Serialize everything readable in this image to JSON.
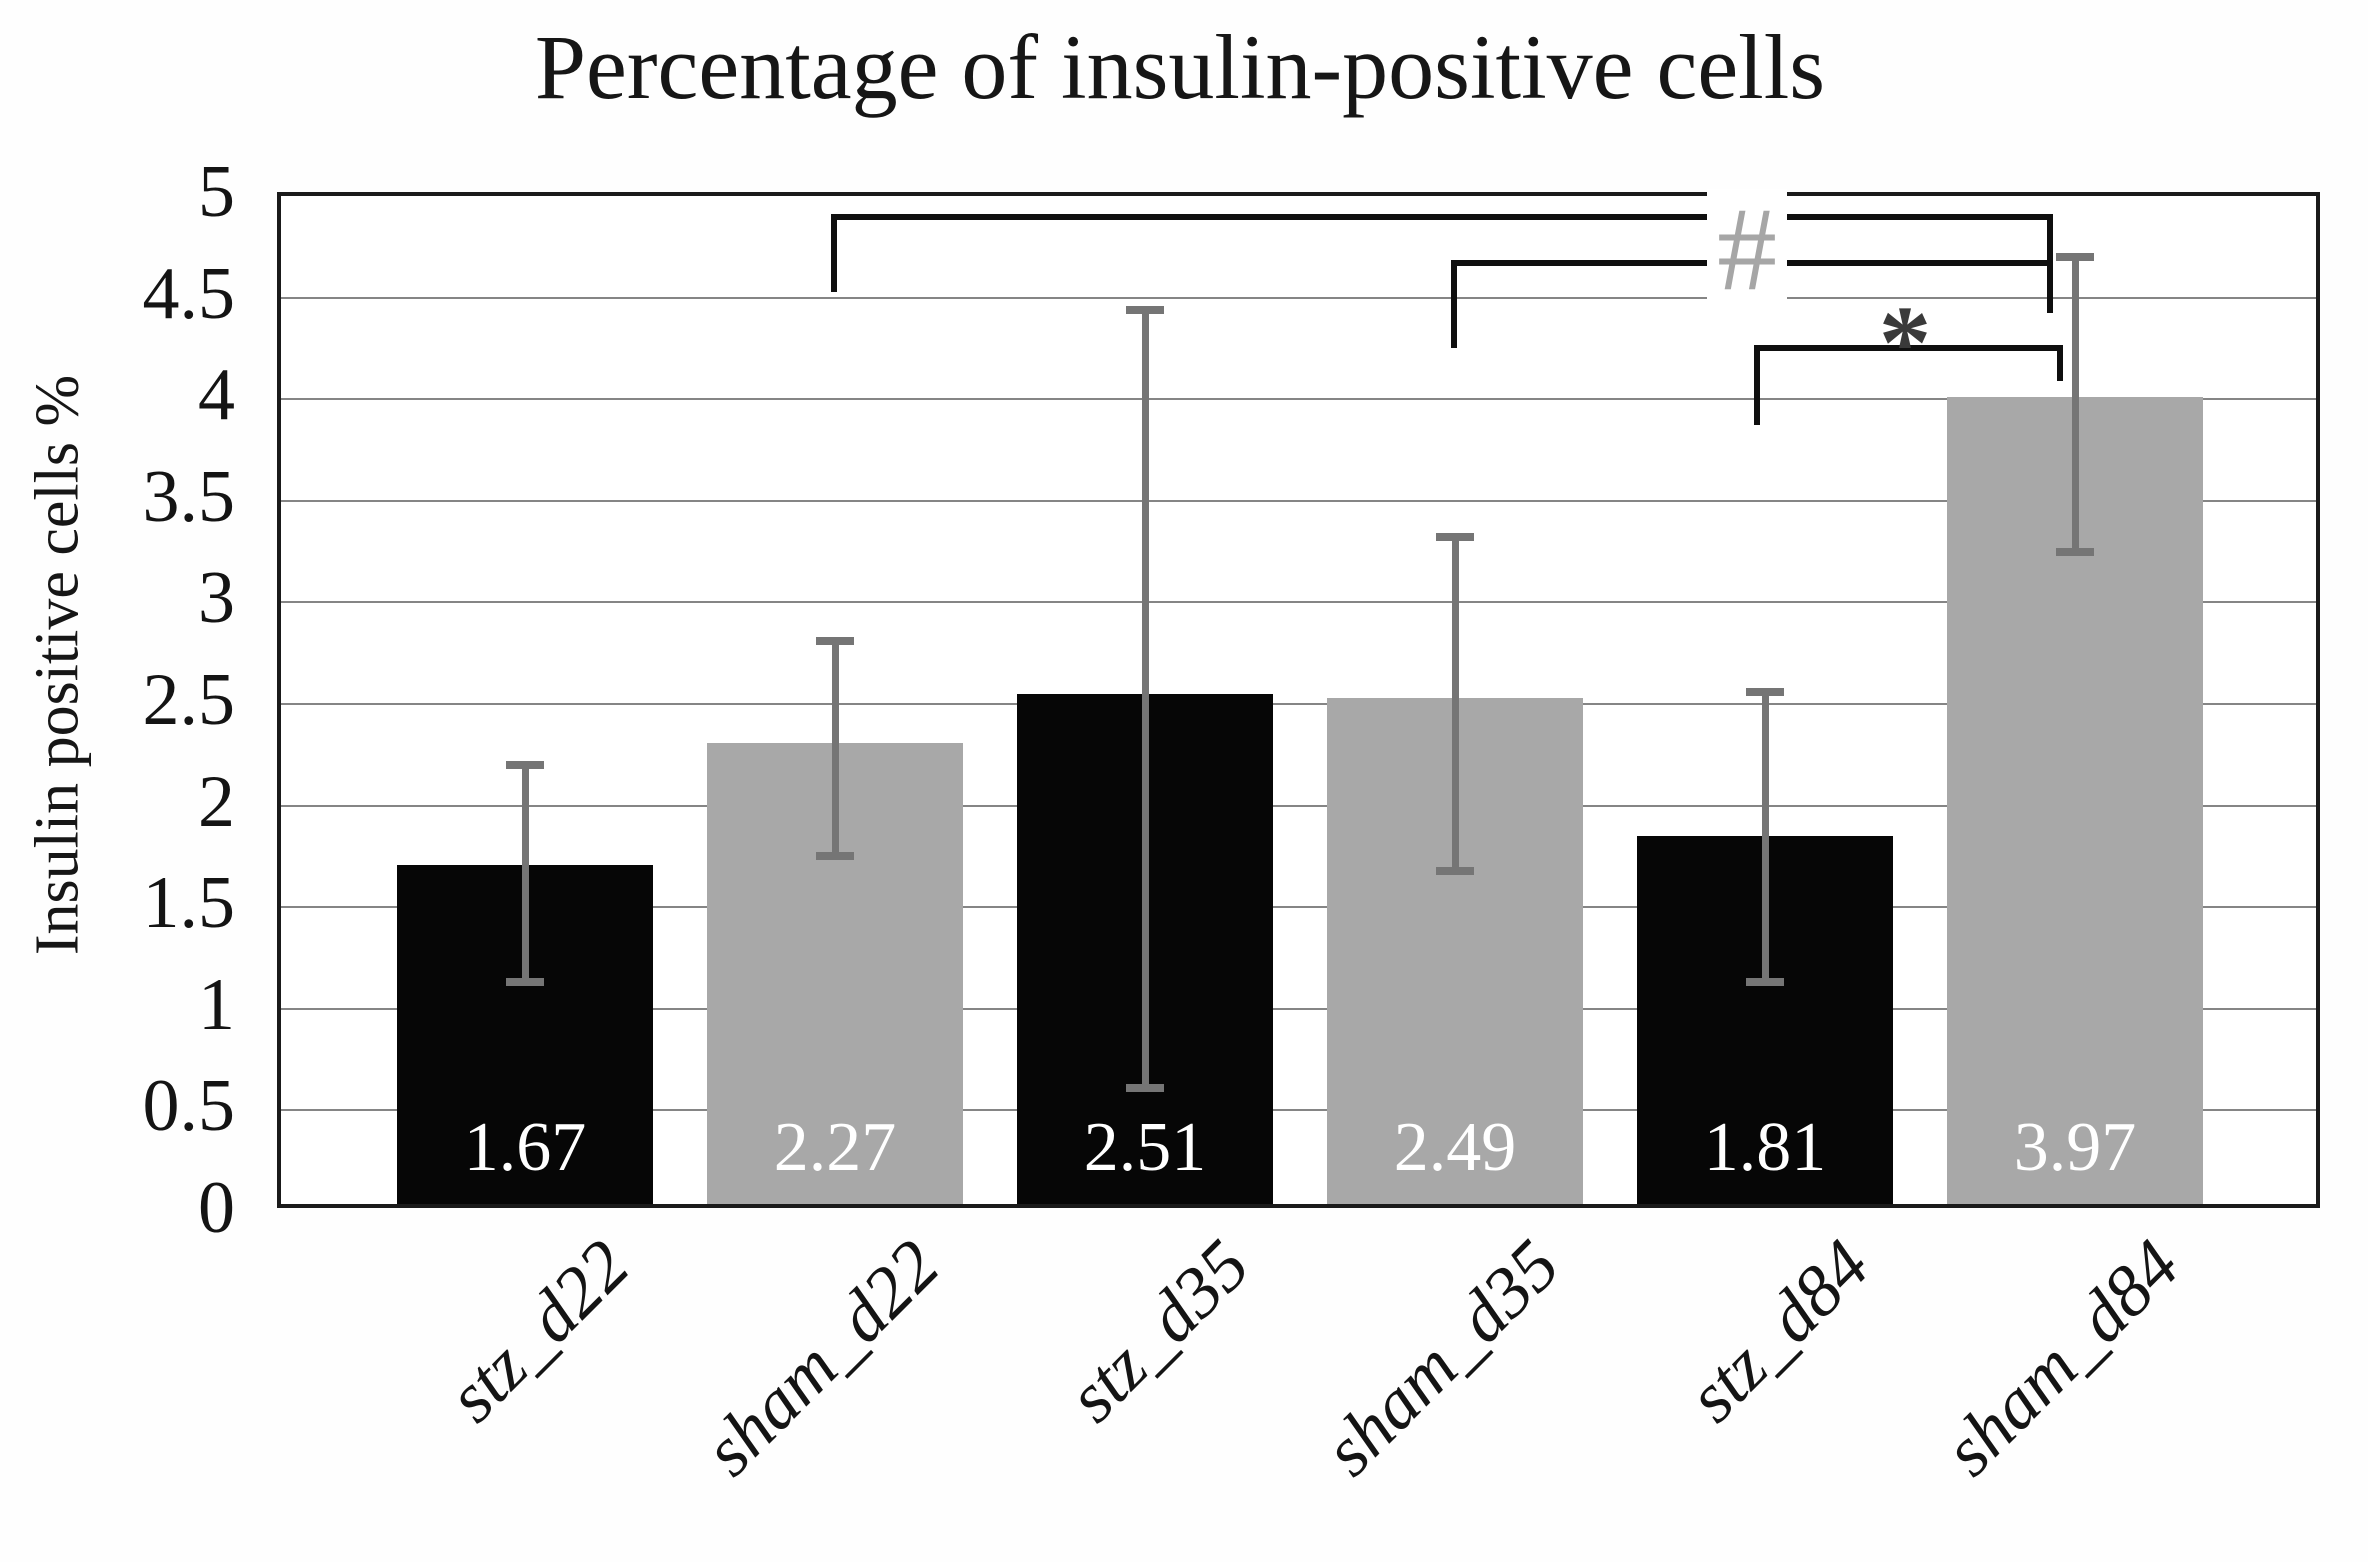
{
  "chart_data": {
    "type": "bar",
    "title": "Percentage of insulin-positive cells",
    "ylabel": "Insulin positive cells %",
    "xlabel": "",
    "ylim": [
      0,
      5
    ],
    "ytick_step": 0.5,
    "ytick_labels": [
      "0",
      "0.5",
      "1",
      "1.5",
      "2",
      "2.5",
      "3",
      "3.5",
      "4",
      "4.5",
      "5"
    ],
    "grid": true,
    "legend": "none",
    "categories": [
      "stz_d22",
      "sham_d22",
      "stz_d35",
      "sham_d35",
      "stz_d84",
      "sham_d84"
    ],
    "values": [
      1.67,
      2.27,
      2.51,
      2.49,
      1.81,
      3.97
    ],
    "value_labels": [
      "1.67",
      "2.27",
      "2.51",
      "2.49",
      "1.81",
      "3.97"
    ],
    "bar_colors": [
      "#060606",
      "#a8a8a8",
      "#060606",
      "#a8a8a8",
      "#060606",
      "#a8a8a8"
    ],
    "value_label_color": "#ffffff",
    "error_color": "#757575",
    "error_bars": [
      {
        "low": 1.13,
        "high": 2.2
      },
      {
        "low": 1.75,
        "high": 2.81
      },
      {
        "low": 0.61,
        "high": 4.44
      },
      {
        "low": 1.68,
        "high": 3.32
      },
      {
        "low": 1.13,
        "high": 2.56
      },
      {
        "low": 3.25,
        "high": 4.7
      }
    ],
    "annotations": [
      {
        "symbol": "#",
        "color": "#a6a6a6",
        "compare": [
          "sham_d22",
          "sham_d84"
        ]
      },
      {
        "symbol": "#",
        "color": "#a6a6a6",
        "compare": [
          "sham_d35",
          "sham_d84"
        ]
      },
      {
        "symbol": "*",
        "color": "#3a3a3a",
        "compare": [
          "stz_d84",
          "sham_d84"
        ]
      }
    ]
  }
}
